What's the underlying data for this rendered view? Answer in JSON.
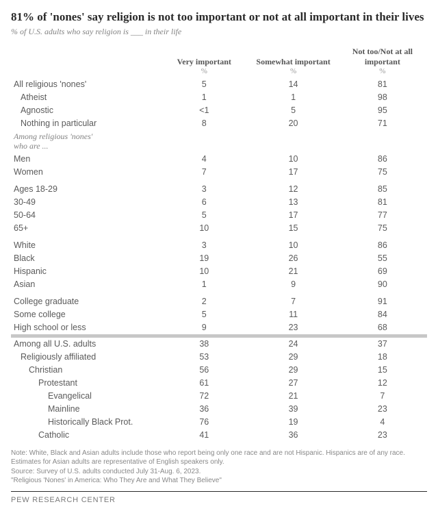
{
  "title": "81% of 'nones' say religion is not too important or not at all important in their lives",
  "subtitle": "% of U.S. adults who say religion is ___ in their life",
  "columns": [
    "Very important",
    "Somewhat important",
    "Not too/Not at all important"
  ],
  "pct_symbol": "%",
  "section_label": "Among religious 'nones' who are ...",
  "rows_top": [
    {
      "label": "All religious 'nones'",
      "indent": 0,
      "v": [
        "5",
        "14",
        "81"
      ]
    },
    {
      "label": "Atheist",
      "indent": 1,
      "v": [
        "1",
        "1",
        "98"
      ]
    },
    {
      "label": "Agnostic",
      "indent": 1,
      "v": [
        "<1",
        "5",
        "95"
      ]
    },
    {
      "label": "Nothing in particular",
      "indent": 1,
      "v": [
        "8",
        "20",
        "71"
      ]
    }
  ],
  "groups": [
    [
      {
        "label": "Men",
        "indent": 0,
        "v": [
          "4",
          "10",
          "86"
        ]
      },
      {
        "label": "Women",
        "indent": 0,
        "v": [
          "7",
          "17",
          "75"
        ]
      }
    ],
    [
      {
        "label": "Ages 18-29",
        "indent": 0,
        "v": [
          "3",
          "12",
          "85"
        ]
      },
      {
        "label": "30-49",
        "indent": 0,
        "v": [
          "6",
          "13",
          "81"
        ]
      },
      {
        "label": "50-64",
        "indent": 0,
        "v": [
          "5",
          "17",
          "77"
        ]
      },
      {
        "label": "65+",
        "indent": 0,
        "v": [
          "10",
          "15",
          "75"
        ]
      }
    ],
    [
      {
        "label": "White",
        "indent": 0,
        "v": [
          "3",
          "10",
          "86"
        ]
      },
      {
        "label": "Black",
        "indent": 0,
        "v": [
          "19",
          "26",
          "55"
        ]
      },
      {
        "label": "Hispanic",
        "indent": 0,
        "v": [
          "10",
          "21",
          "69"
        ]
      },
      {
        "label": "Asian",
        "indent": 0,
        "v": [
          "1",
          "9",
          "90"
        ]
      }
    ],
    [
      {
        "label": "College graduate",
        "indent": 0,
        "v": [
          "2",
          "7",
          "91"
        ]
      },
      {
        "label": "Some college",
        "indent": 0,
        "v": [
          "5",
          "11",
          "84"
        ]
      },
      {
        "label": "High school or less",
        "indent": 0,
        "v": [
          "9",
          "23",
          "68"
        ]
      }
    ]
  ],
  "rows_bottom": [
    {
      "label": "Among all U.S. adults",
      "indent": 0,
      "v": [
        "38",
        "24",
        "37"
      ]
    },
    {
      "label": "Religiously affiliated",
      "indent": 1,
      "v": [
        "53",
        "29",
        "18"
      ]
    },
    {
      "label": "Christian",
      "indent": 2,
      "v": [
        "56",
        "29",
        "15"
      ]
    },
    {
      "label": "Protestant",
      "indent": 3,
      "v": [
        "61",
        "27",
        "12"
      ]
    },
    {
      "label": "Evangelical",
      "indent": 4,
      "v": [
        "72",
        "21",
        "7"
      ]
    },
    {
      "label": "Mainline",
      "indent": 4,
      "v": [
        "36",
        "39",
        "23"
      ]
    },
    {
      "label": "Historically Black Prot.",
      "indent": 4,
      "v": [
        "76",
        "19",
        "4"
      ]
    },
    {
      "label": "Catholic",
      "indent": 3,
      "v": [
        "41",
        "36",
        "23"
      ]
    }
  ],
  "note": "Note: White, Black and Asian adults include those who report being only one race and are not Hispanic. Hispanics are of any race. Estimates for Asian adults are representative of English speakers only.",
  "source": "Source: Survey of U.S. adults conducted July 31-Aug. 6, 2023.",
  "report": "\"Religious 'Nones' in America: Who They Are and What They Believe\"",
  "brand": "PEW RESEARCH CENTER"
}
